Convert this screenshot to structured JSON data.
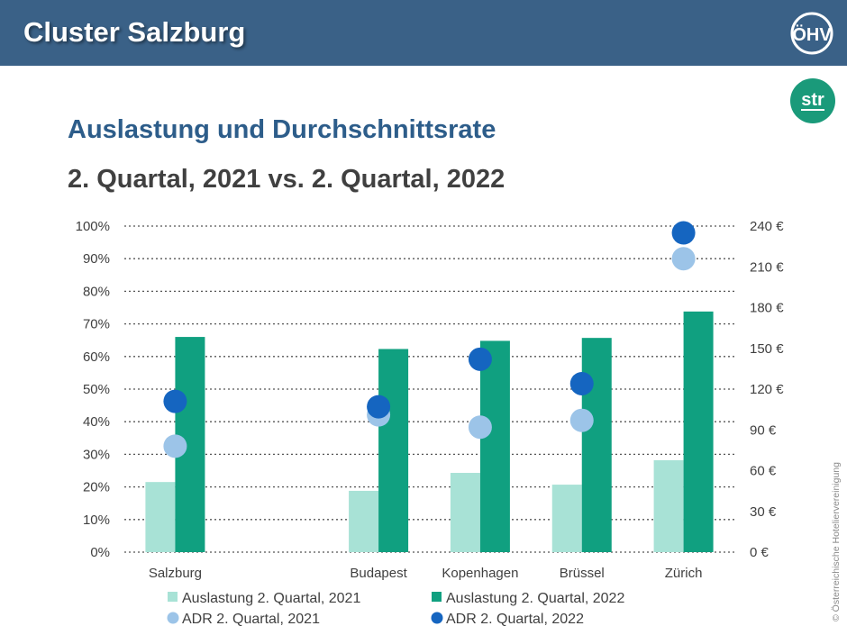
{
  "header": {
    "title": "Cluster Salzburg",
    "logo_text": "ÖHV",
    "partner_logo_text": "str"
  },
  "side_note": "© Österreichische Hotelier­vereinigung",
  "colors": {
    "header_bg": "#3a6187",
    "occ_2021": "#a8e2d6",
    "occ_2022": "#10a080",
    "adr_2021": "#9cc4e8",
    "adr_2022": "#1565c0",
    "title": "#2d5d8a",
    "str_green": "#1a9a7a"
  },
  "chart_data": {
    "type": "bar",
    "title": "Auslastung und Durchschnittsrate",
    "subtitle": "2. Quartal, 2021 vs. 2. Quartal, 2022",
    "categories": [
      "Salzburg",
      "",
      "Budapest",
      "Kopenhagen",
      "Brüssel",
      "Zürich"
    ],
    "series": [
      {
        "name": "Auslastung 2. Quartal, 2021",
        "type": "bar",
        "axis": "left",
        "values": [
          21.5,
          null,
          18.8,
          24.3,
          20.7,
          28.2
        ]
      },
      {
        "name": "Auslastung 2. Quartal, 2022",
        "type": "bar",
        "axis": "left",
        "values": [
          66.0,
          null,
          62.3,
          64.8,
          65.7,
          73.8
        ]
      },
      {
        "name": "ADR 2. Quartal, 2021",
        "type": "scatter",
        "axis": "right",
        "values": [
          78,
          null,
          101,
          92,
          97,
          216
        ]
      },
      {
        "name": "ADR 2. Quartal, 2022",
        "type": "scatter",
        "axis": "right",
        "values": [
          111,
          null,
          107,
          142,
          124,
          235
        ]
      }
    ],
    "y_left": {
      "min": 0,
      "max": 100,
      "step": 10,
      "unit": "%",
      "ticks": [
        "0%",
        "10%",
        "20%",
        "30%",
        "40%",
        "50%",
        "60%",
        "70%",
        "80%",
        "90%",
        "100%"
      ]
    },
    "y_right": {
      "min": 0,
      "max": 240,
      "step": 30,
      "ticks": [
        "0 €",
        "30 €",
        "60 €",
        "90 €",
        "120 €",
        "150 €",
        "180 €",
        "210 €",
        "240 €"
      ]
    },
    "grid": true,
    "legend_position": "bottom",
    "legend": [
      "Auslastung 2. Quartal, 2021",
      "Auslastung 2. Quartal, 2022",
      "ADR 2. Quartal, 2021",
      "ADR 2. Quartal, 2022"
    ]
  }
}
